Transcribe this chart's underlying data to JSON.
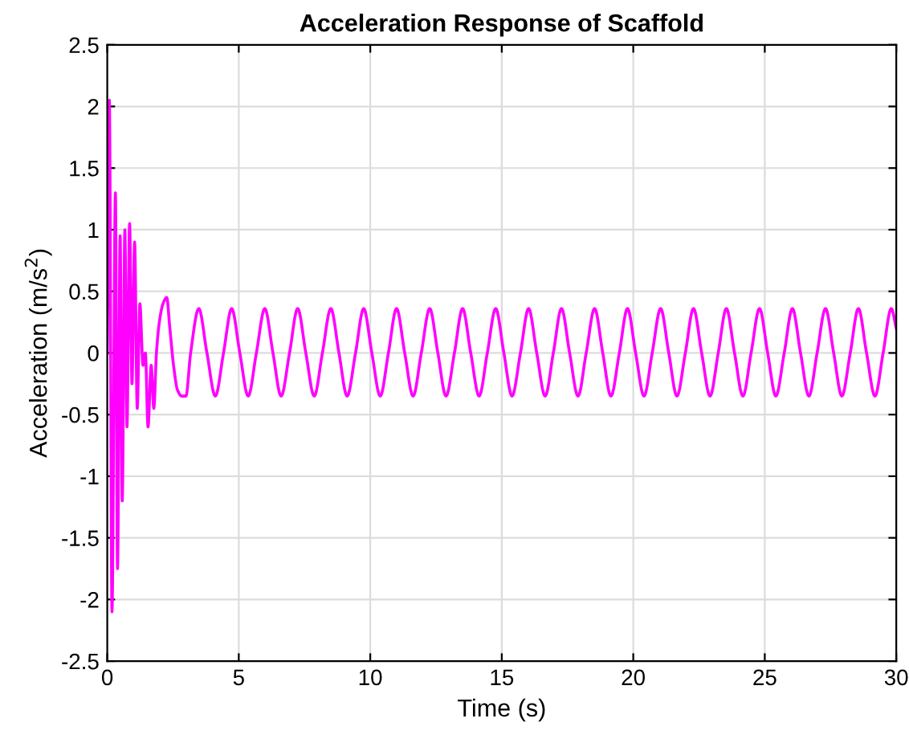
{
  "chart_data": {
    "type": "line",
    "title": "Acceleration Response of Scaffold",
    "xlabel": "Time (s)",
    "ylabel": "Acceleration (m/s$^{2}$)",
    "xlim": [
      0,
      30
    ],
    "ylim": [
      -2.5,
      2.5
    ],
    "xticks": [
      0,
      5,
      10,
      15,
      20,
      25,
      30
    ],
    "yticks": [
      -2.5,
      -2,
      -1.5,
      -1,
      -0.5,
      0,
      0.5,
      1,
      1.5,
      2,
      2.5
    ],
    "grid": true,
    "legend": false,
    "line_style": "solid",
    "marker": "none",
    "series": [
      {
        "color": "#ff00ff",
        "x": [
          0,
          0.08,
          0.18,
          0.31,
          0.39,
          0.49,
          0.57,
          0.67,
          0.75,
          0.85,
          0.94,
          1.04,
          1.14,
          1.24,
          1.36,
          1.45,
          1.55,
          1.67,
          1.77,
          1.87,
          1.98,
          2.12,
          2.26,
          2.38,
          2.52,
          2.67,
          2.83,
          2.99,
          3.17,
          3.48,
          3.79,
          4.11,
          4.42,
          4.73,
          5.04,
          5.36,
          5.67,
          5.99,
          6.3,
          6.61,
          6.93,
          7.24,
          7.55,
          7.87,
          8.18,
          8.5,
          8.81,
          9.12,
          9.44,
          9.75,
          10.06,
          10.38,
          10.69,
          11.0,
          11.31,
          11.63,
          11.94,
          12.26,
          12.57,
          12.88,
          13.2,
          13.51,
          13.82,
          14.14,
          14.45,
          14.77,
          15.08,
          15.39,
          15.71,
          16.02,
          16.33,
          16.65,
          16.96,
          17.27,
          17.58,
          17.9,
          18.21,
          18.53,
          18.84,
          19.15,
          19.47,
          19.78,
          20.09,
          20.41,
          20.72,
          21.04,
          21.35,
          21.66,
          21.98,
          22.29,
          22.6,
          22.92,
          23.23,
          23.54,
          23.85,
          24.17,
          24.48,
          24.8,
          25.11,
          25.42,
          25.74,
          26.05,
          26.36,
          26.68,
          26.99,
          27.31,
          27.62,
          27.93,
          28.25,
          28.56,
          28.87,
          29.19,
          29.5,
          29.81,
          30
        ],
        "values": [
          0,
          2.05,
          -2.1,
          1.3,
          -1.75,
          0.95,
          -1.2,
          1.0,
          -0.6,
          1.05,
          -0.25,
          0.9,
          -0.45,
          0.4,
          -0.1,
          0.0,
          -0.6,
          -0.1,
          -0.45,
          0.0,
          0.25,
          0.4,
          0.45,
          0.2,
          -0.1,
          -0.3,
          -0.35,
          -0.35,
          0,
          0.36,
          0,
          -0.35,
          0,
          0.36,
          0,
          -0.35,
          0,
          0.36,
          0,
          -0.35,
          0,
          0.36,
          0,
          -0.35,
          0,
          0.36,
          0,
          -0.35,
          0,
          0.36,
          0,
          -0.35,
          0,
          0.36,
          0,
          -0.35,
          0,
          0.36,
          0,
          -0.35,
          0,
          0.36,
          0,
          -0.35,
          0,
          0.36,
          0,
          -0.35,
          0,
          0.36,
          0,
          -0.35,
          0,
          0.36,
          0,
          -0.35,
          0,
          0.36,
          0,
          -0.35,
          0,
          0.36,
          0,
          -0.35,
          0,
          0.36,
          0,
          -0.35,
          0,
          0.36,
          0,
          -0.35,
          0,
          0.36,
          0,
          -0.35,
          0,
          0.36,
          0,
          -0.35,
          0,
          0.36,
          0,
          -0.35,
          0,
          0.36,
          0,
          -0.35,
          0,
          0.36,
          0,
          -0.35,
          0,
          0.36,
          0.2
        ]
      }
    ]
  }
}
